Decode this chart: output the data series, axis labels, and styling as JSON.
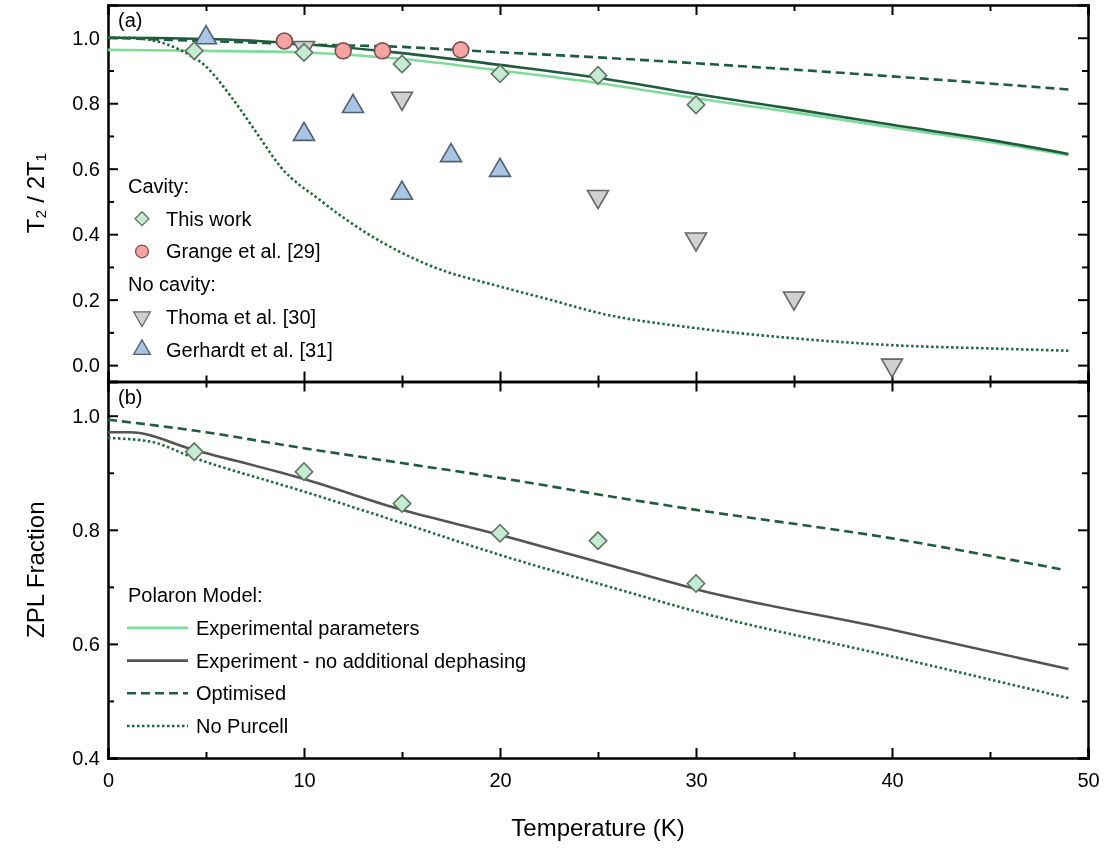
{
  "chart_data": [
    {
      "type": "scatter",
      "ylabel": "T₂ / 2T₁",
      "annotations": [
        "(a)",
        "No cavity:"
      ],
      "legend_title": "Cavity:",
      "legend": "bottom left",
      "tick_labels": "y",
      "xlim": [
        0,
        50
      ],
      "xticks": [
        0,
        {
          "value": 5,
          "label": null
        },
        10,
        {
          "value": 15,
          "label": null
        },
        20,
        {
          "value": 25,
          "label": null
        },
        30,
        {
          "value": 35,
          "label": null
        },
        40,
        {
          "value": 45,
          "label": null
        },
        50
      ],
      "ylim": [
        -0.05,
        1.1
      ],
      "yticks": [
        {
          "value": 0,
          "label": "0.0"
        },
        {
          "value": 0.1,
          "label": null
        },
        {
          "value": 0.2,
          "label": "0.2"
        },
        {
          "value": 0.3,
          "label": null
        },
        {
          "value": 0.4,
          "label": "0.4"
        },
        {
          "value": 0.5,
          "label": null
        },
        {
          "value": 0.6,
          "label": "0.6"
        },
        {
          "value": 0.7,
          "label": null
        },
        {
          "value": 0.8,
          "label": "0.8"
        },
        {
          "value": 0.9,
          "label": null
        },
        {
          "value": 1.0,
          "label": "1.0"
        }
      ],
      "series": [
        {
          "type": "line",
          "line_style": "solid",
          "color": "#7ddc9c",
          "x": [
            0,
            2,
            5,
            10,
            15,
            20,
            25,
            30,
            35,
            40,
            45,
            49
          ],
          "values": [
            0.963,
            0.962,
            0.96,
            0.955,
            0.935,
            0.9,
            0.862,
            0.815,
            0.772,
            0.726,
            0.682,
            0.641
          ]
        },
        {
          "type": "line",
          "line_style": "solid",
          "color": "#1f5c3d",
          "x": [
            0,
            2.5,
            7,
            15,
            20,
            25,
            30,
            35,
            40,
            45,
            49
          ],
          "values": [
            1.0,
            0.999,
            0.992,
            0.953,
            0.917,
            0.878,
            0.828,
            0.782,
            0.734,
            0.688,
            0.645
          ]
        },
        {
          "type": "line",
          "line_style": "dashed",
          "color": "#1f5c3d",
          "x": [
            0,
            5,
            11,
            15,
            18,
            25,
            30,
            40,
            49
          ],
          "values": [
            1.0,
            0.99,
            0.978,
            0.972,
            0.962,
            0.94,
            0.922,
            0.882,
            0.842
          ]
        },
        {
          "type": "line",
          "line_style": "dotted",
          "color": "#1f6b3d",
          "x": [
            0,
            1,
            2,
            3,
            3.7,
            5,
            6.4,
            7.6,
            8.8,
            10.8,
            13.2,
            16.6,
            20,
            22.6,
            25,
            30,
            35,
            40,
            45,
            49
          ],
          "values": [
            1.0,
            1.0,
            0.995,
            0.98,
            0.962,
            0.912,
            0.81,
            0.708,
            0.606,
            0.505,
            0.403,
            0.3,
            0.24,
            0.199,
            0.16,
            0.113,
            0.082,
            0.061,
            0.051,
            0.044
          ]
        },
        {
          "name": "This work",
          "marker": "diamond",
          "color": "#c5ebd3",
          "x": [
            4.4,
            10,
            15,
            20,
            25,
            30
          ],
          "values": [
            0.96,
            0.955,
            0.92,
            0.89,
            0.885,
            0.795
          ]
        },
        {
          "name": "Grange et al. [29]",
          "marker": "circle",
          "color": "#f5a3a3",
          "x": [
            9,
            12,
            14,
            18
          ],
          "values": [
            0.99,
            0.96,
            0.96,
            0.963
          ]
        },
        {
          "name": "Thoma et al. [30]",
          "marker": "triangle-down",
          "color": "#d0d0d0",
          "x": [
            10,
            15,
            25,
            30,
            35,
            40
          ],
          "values": [
            0.97,
            0.815,
            0.515,
            0.385,
            0.205,
            0.0
          ]
        },
        {
          "name": "Gerhardt et al. [31]",
          "marker": "triangle",
          "color": "#a9c4e4",
          "x": [
            5,
            10,
            12.5,
            15,
            17.5,
            20
          ],
          "values": [
            1.0,
            0.705,
            0.79,
            0.525,
            0.64,
            0.595
          ]
        }
      ]
    },
    {
      "type": "scatter",
      "xlabel": "Temperature (K)",
      "ylabel": "ZPL Fraction",
      "annotations": [
        "(b)"
      ],
      "legend_title": "Polaron Model:",
      "legend": "bottom left",
      "xlim": [
        0,
        50
      ],
      "xticks": [
        0,
        {
          "value": 5,
          "label": null
        },
        10,
        {
          "value": 15,
          "label": null
        },
        20,
        {
          "value": 25,
          "label": null
        },
        30,
        {
          "value": 35,
          "label": null
        },
        40,
        {
          "value": 45,
          "label": null
        },
        50
      ],
      "ylim": [
        0.4,
        1.06
      ],
      "yticks": [
        {
          "value": 0.4,
          "label": "0.4"
        },
        {
          "value": 0.5,
          "label": null
        },
        {
          "value": 0.6,
          "label": "0.6"
        },
        {
          "value": 0.7,
          "label": null
        },
        {
          "value": 0.8,
          "label": "0.8"
        },
        {
          "value": 0.9,
          "label": null
        },
        {
          "value": 1.0,
          "label": "1.0"
        }
      ],
      "series": [
        {
          "name": "Experimental parameters",
          "type": "line",
          "line_style": "solid",
          "color": "#7ddc9c"
        },
        {
          "name": "Experiment - no additional dephasing",
          "type": "line",
          "line_style": "solid",
          "color": "#555555",
          "x": [
            0,
            1.1,
            4.4,
            10,
            15,
            20,
            26.1,
            30,
            40,
            49
          ],
          "values": [
            0.971,
            0.971,
            0.94,
            0.889,
            0.835,
            0.791,
            0.733,
            0.696,
            0.625,
            0.556
          ]
        },
        {
          "name": "Optimised",
          "type": "line",
          "line_style": "dashed",
          "color": "#1f5c3d",
          "x": [
            0,
            4.4,
            10,
            15,
            20,
            26.1,
            30,
            40,
            48.6
          ],
          "values": [
            0.993,
            0.974,
            0.943,
            0.917,
            0.891,
            0.856,
            0.835,
            0.785,
            0.731
          ]
        },
        {
          "name": "No Purcell",
          "type": "line",
          "line_style": "dotted",
          "color": "#1f6b3d",
          "x": [
            0,
            2.1,
            4.4,
            10,
            15,
            20,
            26.1,
            30,
            40,
            49
          ],
          "values": [
            0.961,
            0.955,
            0.926,
            0.867,
            0.812,
            0.756,
            0.695,
            0.657,
            0.578,
            0.505
          ]
        },
        {
          "marker": "diamond",
          "color": "#c5ebd3",
          "x": [
            4.4,
            10,
            15,
            20,
            25,
            30
          ],
          "values": [
            0.937,
            0.902,
            0.846,
            0.794,
            0.781,
            0.706
          ]
        }
      ]
    }
  ]
}
